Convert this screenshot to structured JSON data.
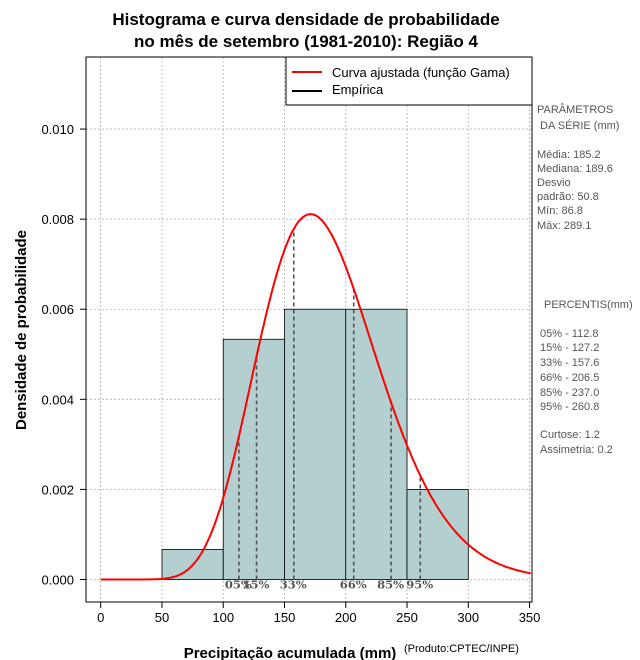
{
  "chart_data": {
    "type": "bar",
    "title_lines": [
      "Histograma e curva densidade de probabilidade",
      "no mês de setembro (1981-2010): Região 4"
    ],
    "xlabel": "Precipitação acumulada (mm)",
    "ylabel": "Densidade de probabilidade",
    "credit": "(Produto:CPTEC/INPE)",
    "xlim": [
      -12,
      352
    ],
    "ylim": [
      -0.0005,
      0.0116
    ],
    "x_ticks": [
      0,
      50,
      100,
      150,
      200,
      250,
      300,
      350
    ],
    "y_ticks": [
      0.0,
      0.002,
      0.004,
      0.006,
      0.008,
      0.01
    ],
    "y_tick_labels": [
      "0.000",
      "0.002",
      "0.004",
      "0.006",
      "0.008",
      "0.010"
    ],
    "grid": true,
    "histogram": {
      "bins": [
        [
          50,
          100
        ],
        [
          100,
          150
        ],
        [
          150,
          200
        ],
        [
          200,
          250
        ],
        [
          250,
          300
        ]
      ],
      "density": [
        0.000667,
        0.005333,
        0.006,
        0.006,
        0.002
      ],
      "color": "#b4cfcf"
    },
    "gamma_curve": {
      "name": "Curva ajustada (função Gama)",
      "mean": 185.2,
      "sd": 50.8,
      "color": "#ff0000"
    },
    "percentile_lines": [
      {
        "label": "05%",
        "x": 112.8
      },
      {
        "label": "15%",
        "x": 127.2
      },
      {
        "label": "33%",
        "x": 157.6
      },
      {
        "label": "66%",
        "x": 206.5
      },
      {
        "label": "85%",
        "x": 237.0
      },
      {
        "label": "95%",
        "x": 260.8
      }
    ],
    "legend": [
      {
        "label": "Curva ajustada (função Gama)",
        "color": "#ff0000"
      },
      {
        "label": "Empírica",
        "color": "#000000"
      }
    ],
    "legend_position": "top-right"
  },
  "side_panel": {
    "series_params": {
      "heading_line1": "PARÂMETROS",
      "heading_line2": "DA SÉRIE (mm)",
      "lines": [
        "Média:  185.2",
        "Mediana:  189.6",
        "Desvio",
        "padrão:  50.8",
        "Mín:  86.8",
        "Máx:  289.1"
      ]
    },
    "percentiles": {
      "heading": "PERCENTIS(mm)",
      "lines": [
        "05% -  112.8",
        "15% -  127.2",
        "33% -  157.6",
        "66% -  206.5",
        "85% -  237.0",
        "95% -  260.8"
      ]
    },
    "stats": {
      "lines": [
        "Curtose:  1.2",
        "Assimetria:  0.2"
      ]
    }
  }
}
